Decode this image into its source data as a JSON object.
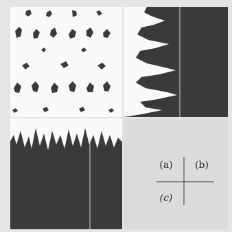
{
  "figure": {
    "panel_labels": [
      "(a)",
      "(b)",
      "(c)"
    ]
  }
}
